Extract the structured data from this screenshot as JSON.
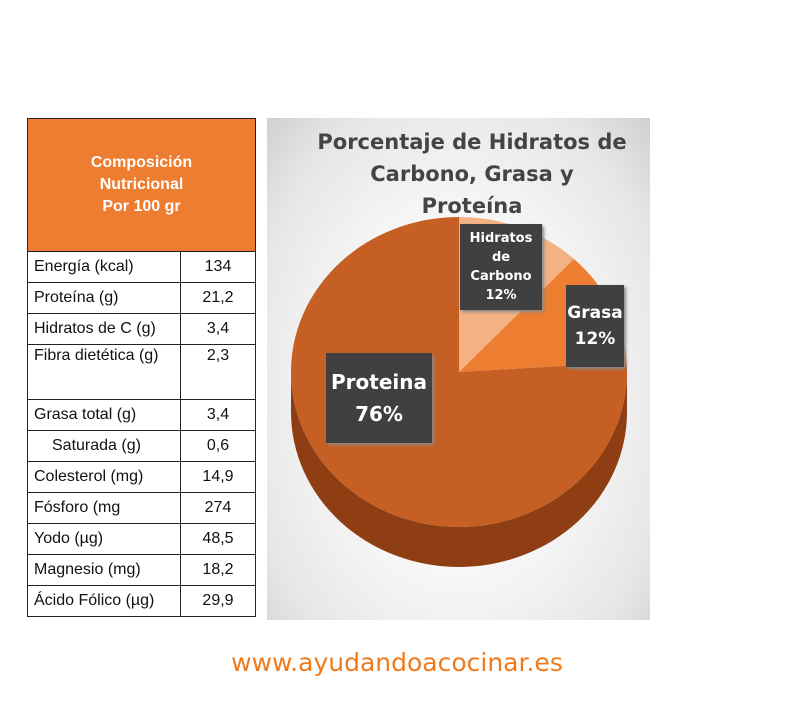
{
  "table": {
    "header": [
      "Composición",
      "Nutricional",
      "Por 100 gr"
    ],
    "rows": [
      [
        "Energía (kcal)",
        "134"
      ],
      [
        "Proteína (g)",
        "21,2"
      ],
      [
        "Hidratos de C (g)",
        "3,4"
      ],
      [
        "Fibra dietética (g)",
        "2,3"
      ],
      [
        "Grasa total (g)",
        "3,4"
      ],
      [
        "Saturada (g)",
        "0,6"
      ],
      [
        "Colesterol (mg)",
        "14,9"
      ],
      [
        "Fósforo (mg",
        "274"
      ],
      [
        "Yodo (µg)",
        "48,5"
      ],
      [
        "Magnesio (mg)",
        "18,2"
      ],
      [
        "Ácido Fólico (µg)",
        "29,9"
      ]
    ]
  },
  "chart_data": {
    "type": "pie",
    "title": "Porcentaje de Hidratos de Carbono, Grasa y Proteína",
    "categories": [
      "Hidratos de Carbono",
      "Grasa",
      "Proteina"
    ],
    "values": [
      12,
      12,
      76
    ],
    "value_labels": [
      "12%",
      "12%",
      "76%"
    ],
    "colors": [
      "#F4B183",
      "#ED7D31",
      "#C55F24"
    ]
  },
  "footer": "www.ayudandoacocinar.es"
}
